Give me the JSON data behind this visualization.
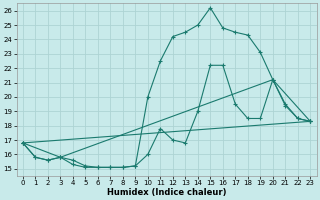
{
  "xlabel": "Humidex (Indice chaleur)",
  "bg_color": "#c8eaea",
  "grid_color": "#add4d4",
  "line_color": "#1a7a6e",
  "xlim": [
    -0.5,
    23.5
  ],
  "ylim": [
    14.5,
    26.5
  ],
  "xticks": [
    0,
    1,
    2,
    3,
    4,
    5,
    6,
    7,
    8,
    9,
    10,
    11,
    12,
    13,
    14,
    15,
    16,
    17,
    18,
    19,
    20,
    21,
    22,
    23
  ],
  "yticks": [
    15,
    16,
    17,
    18,
    19,
    20,
    21,
    22,
    23,
    24,
    25,
    26
  ],
  "series": [
    {
      "x": [
        0,
        1,
        2,
        3,
        4,
        5,
        6,
        7,
        8,
        9,
        10,
        11,
        12,
        13,
        14,
        15,
        16,
        17,
        18,
        19,
        20,
        21,
        22,
        23
      ],
      "y": [
        16.8,
        15.8,
        15.6,
        15.8,
        15.6,
        15.2,
        15.1,
        15.1,
        15.1,
        15.2,
        20.0,
        22.5,
        24.2,
        24.5,
        25.0,
        26.2,
        24.8,
        24.5,
        24.3,
        23.1,
        21.2,
        19.5,
        18.5,
        18.3
      ]
    },
    {
      "x": [
        0,
        1,
        2,
        3,
        4,
        5,
        6,
        7,
        8,
        9,
        10,
        11,
        12,
        13,
        14,
        15,
        16,
        17,
        18,
        19,
        20,
        21,
        22,
        23
      ],
      "y": [
        16.8,
        15.8,
        15.6,
        15.8,
        15.3,
        15.1,
        15.1,
        15.1,
        15.1,
        15.2,
        16.0,
        17.8,
        17.0,
        16.8,
        19.0,
        22.2,
        22.2,
        19.5,
        18.5,
        18.5,
        21.2,
        19.4,
        18.5,
        18.3
      ]
    },
    {
      "x": [
        0,
        23
      ],
      "y": [
        16.8,
        18.3
      ]
    },
    {
      "x": [
        0,
        3,
        20,
        23
      ],
      "y": [
        16.8,
        15.8,
        21.2,
        18.3
      ]
    }
  ]
}
